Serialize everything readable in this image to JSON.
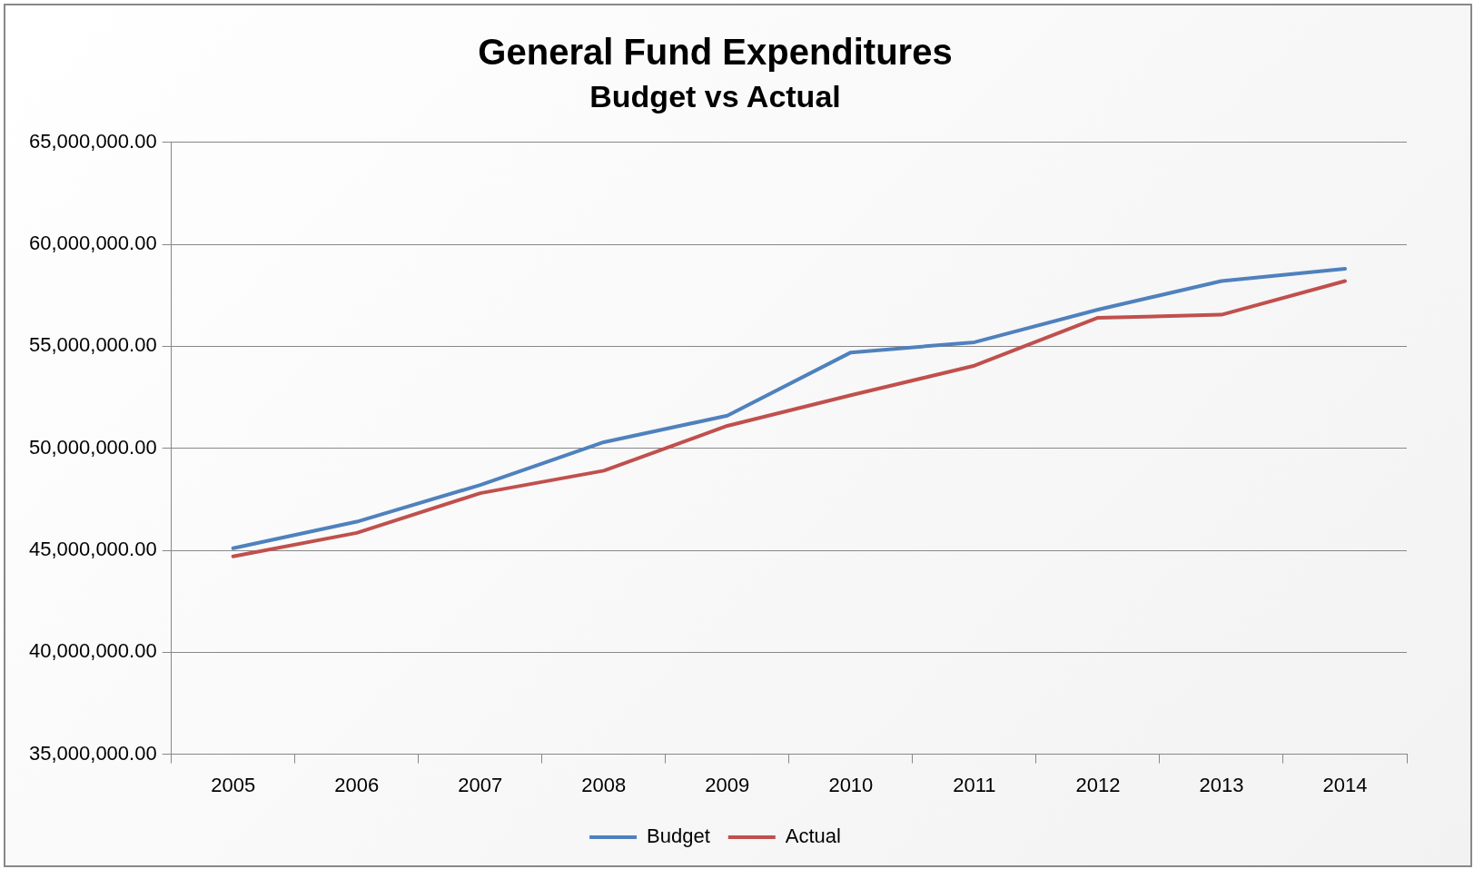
{
  "chart_data": {
    "type": "line",
    "title": "General Fund Expenditures",
    "subtitle": "Budget vs Actual",
    "categories": [
      "2005",
      "2006",
      "2007",
      "2008",
      "2009",
      "2010",
      "2011",
      "2012",
      "2013",
      "2014"
    ],
    "series": [
      {
        "name": "Budget",
        "color": "#4f81bd",
        "values": [
          45100000,
          46400000,
          48200000,
          50300000,
          51600000,
          54700000,
          55200000,
          56800000,
          58200000,
          58800000
        ]
      },
      {
        "name": "Actual",
        "color": "#c0504d",
        "values": [
          44700000,
          45850000,
          47800000,
          48900000,
          51100000,
          52600000,
          54050000,
          56400000,
          56550000,
          58200000
        ]
      }
    ],
    "ylim": [
      35000000,
      65000000
    ],
    "yticks": [
      {
        "value": 35000000,
        "label": "35,000,000.00"
      },
      {
        "value": 40000000,
        "label": "40,000,000.00"
      },
      {
        "value": 45000000,
        "label": "45,000,000.00"
      },
      {
        "value": 50000000,
        "label": "50,000,000.00"
      },
      {
        "value": 55000000,
        "label": "55,000,000.00"
      },
      {
        "value": 60000000,
        "label": "60,000,000.00"
      },
      {
        "value": 65000000,
        "label": "65,000,000.00"
      }
    ],
    "grid": "y",
    "legend": "bottom",
    "marker": "none",
    "line_style": "solid"
  }
}
